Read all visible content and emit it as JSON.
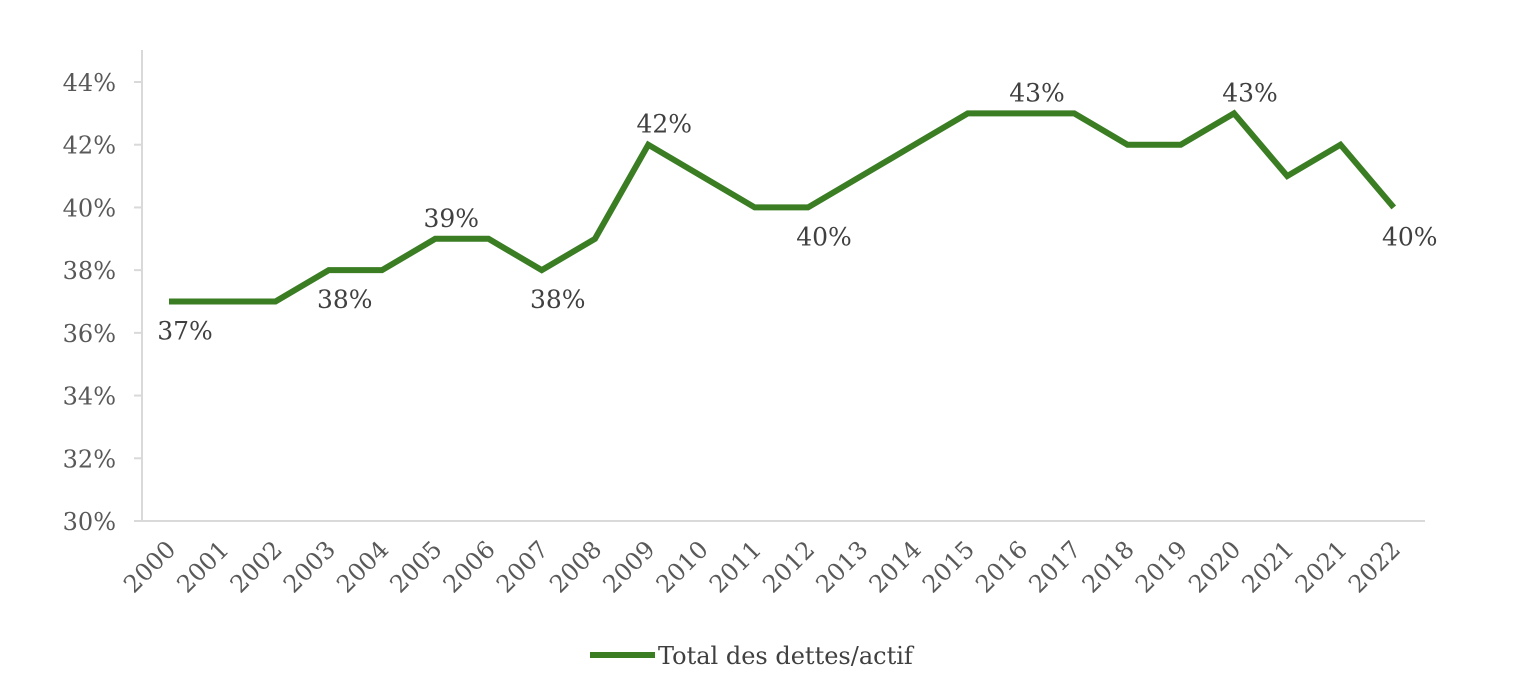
{
  "chart_data": {
    "type": "line",
    "title": "",
    "xlabel": "",
    "ylabel": "",
    "categories": [
      "2000",
      "2001",
      "2002",
      "2003",
      "2004",
      "2005",
      "2006",
      "2007",
      "2008",
      "2009",
      "2010",
      "2011",
      "2012",
      "2013",
      "2014",
      "2015",
      "2016",
      "2017",
      "2018",
      "2019",
      "2020",
      "2021",
      "2021",
      "2022"
    ],
    "series": [
      {
        "name": "Total des dettes/actif",
        "color": "#3a7d23",
        "values": [
          37,
          37,
          37,
          38,
          38,
          39,
          39,
          38,
          39,
          42,
          41,
          40,
          40,
          41,
          42,
          43,
          43,
          43,
          42,
          42,
          43,
          41,
          42,
          40
        ]
      }
    ],
    "data_labels": [
      {
        "index": 0,
        "text": "37%",
        "position": "below"
      },
      {
        "index": 3,
        "text": "38%",
        "position": "below"
      },
      {
        "index": 5,
        "text": "39%",
        "position": "above"
      },
      {
        "index": 7,
        "text": "38%",
        "position": "below"
      },
      {
        "index": 9,
        "text": "42%",
        "position": "above"
      },
      {
        "index": 12,
        "text": "40%",
        "position": "below"
      },
      {
        "index": 16,
        "text": "43%",
        "position": "above"
      },
      {
        "index": 20,
        "text": "43%",
        "position": "above"
      },
      {
        "index": 23,
        "text": "40%",
        "position": "below"
      }
    ],
    "y_axis": {
      "ylim": [
        30,
        44
      ],
      "ticks": [
        30,
        32,
        34,
        36,
        38,
        40,
        42,
        44
      ],
      "tick_labels": [
        "30%",
        "32%",
        "34%",
        "36%",
        "38%",
        "40%",
        "42%",
        "44%"
      ]
    },
    "grid": false,
    "legend": {
      "position": "bottom",
      "entries": [
        "Total des dettes/actif"
      ]
    },
    "axis_color": "#d9d9d9"
  }
}
